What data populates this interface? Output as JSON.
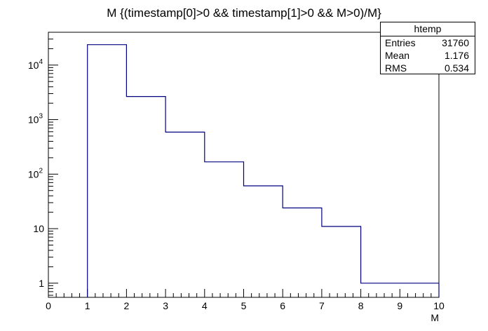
{
  "chart_data": {
    "type": "bar",
    "style": "step-histogram",
    "title": "M {(timestamp[0]>0 && timestamp[1]>0 && M>0)/M}",
    "xlabel": "M",
    "ylabel": "",
    "xlim": [
      0,
      10
    ],
    "ylim": [
      0.55,
      40000
    ],
    "yscale": "log",
    "bin_edges": [
      1,
      2,
      3,
      4,
      5,
      6,
      7,
      8,
      10
    ],
    "values": [
      23700,
      2650,
      590,
      168,
      61,
      24,
      11,
      1
    ],
    "x_ticks": [
      "0",
      "1",
      "2",
      "3",
      "4",
      "5",
      "6",
      "7",
      "8",
      "9",
      "10"
    ],
    "y_ticks": [
      {
        "value": 1,
        "base": "1",
        "exp": ""
      },
      {
        "value": 10,
        "base": "10",
        "exp": ""
      },
      {
        "value": 100,
        "base": "10",
        "exp": "2"
      },
      {
        "value": 1000,
        "base": "10",
        "exp": "3"
      },
      {
        "value": 10000,
        "base": "10",
        "exp": "4"
      }
    ],
    "line_color": "#000080",
    "grid": false,
    "legend": "top-right",
    "stats": {
      "name": "htemp",
      "rows": [
        {
          "label": "Entries",
          "value": "31760"
        },
        {
          "label": "Mean",
          "value": "1.176"
        },
        {
          "label": "RMS",
          "value": "0.534"
        }
      ]
    }
  }
}
